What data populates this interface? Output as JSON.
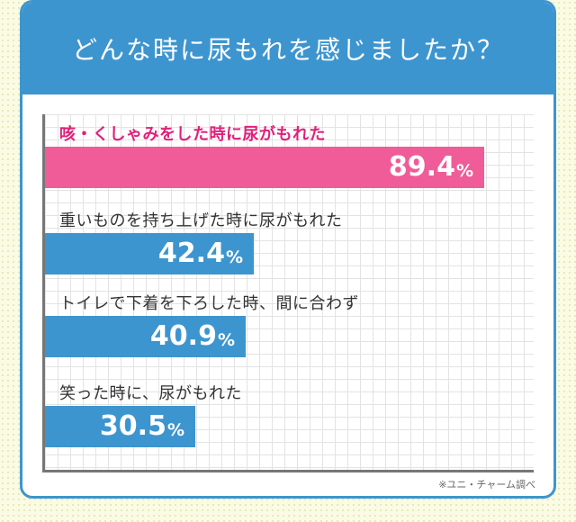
{
  "header": {
    "title": "どんな時に尿もれを感じましたか？"
  },
  "chart_data": {
    "type": "bar",
    "orientation": "horizontal",
    "categories": [
      "咳・くしゃみをした時に尿がもれた",
      "重いものを持ち上げた時に尿がもれた",
      "トイレで下着を下ろした時、間に合わず",
      "笑った時に、尿がもれた"
    ],
    "values": [
      89.4,
      42.4,
      40.9,
      30.5
    ],
    "value_labels": [
      "89.4",
      "42.4",
      "40.9",
      "30.5"
    ],
    "unit": "%",
    "xlim": [
      0,
      100
    ],
    "grid": true,
    "highlight_index": 0,
    "colors": {
      "highlight_bar": "#f05c98",
      "highlight_label": "#e0217a",
      "bar": "#3d95cf",
      "label": "#333333"
    }
  },
  "footer": {
    "source": "※ユニ・チャーム調べ"
  }
}
